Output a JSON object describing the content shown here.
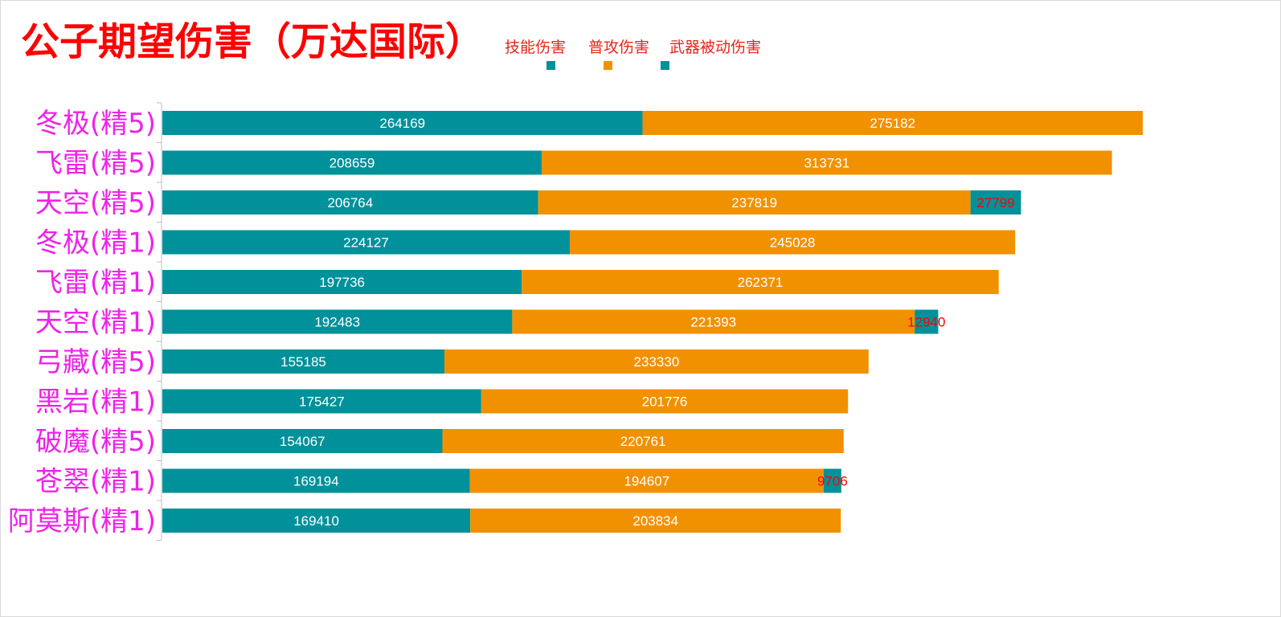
{
  "chart_data": {
    "type": "bar",
    "orientation": "horizontal",
    "stacked": true,
    "title": "公子期望伤害（万达国际）",
    "categories": [
      "冬极(精5)",
      "飞雷(精5)",
      "天空(精5)",
      "冬极(精1)",
      "飞雷(精1)",
      "天空(精1)",
      "弓藏(精5)",
      "黑岩(精1)",
      "破魔(精5)",
      "苍翠(精1)",
      "阿莫斯(精1)"
    ],
    "series": [
      {
        "name": "技能伤害",
        "color": "#00919a",
        "label_color": "#ffffff",
        "values": [
          264169,
          208659,
          206764,
          224127,
          197736,
          192483,
          155185,
          175427,
          154067,
          169194,
          169410
        ]
      },
      {
        "name": "普攻伤害",
        "color": "#f29100",
        "label_color": "#ffffff",
        "values": [
          275182,
          313731,
          237819,
          245028,
          262371,
          221393,
          233330,
          201776,
          220761,
          194607,
          203834
        ]
      },
      {
        "name": "武器被动伤害",
        "color": "#00919a",
        "label_color": "#ff0000",
        "values": [
          null,
          null,
          27799,
          null,
          null,
          12940,
          null,
          null,
          null,
          9706,
          null
        ]
      }
    ],
    "xlim": [
      0,
      540000
    ],
    "grid": false,
    "legend_position": "top"
  }
}
